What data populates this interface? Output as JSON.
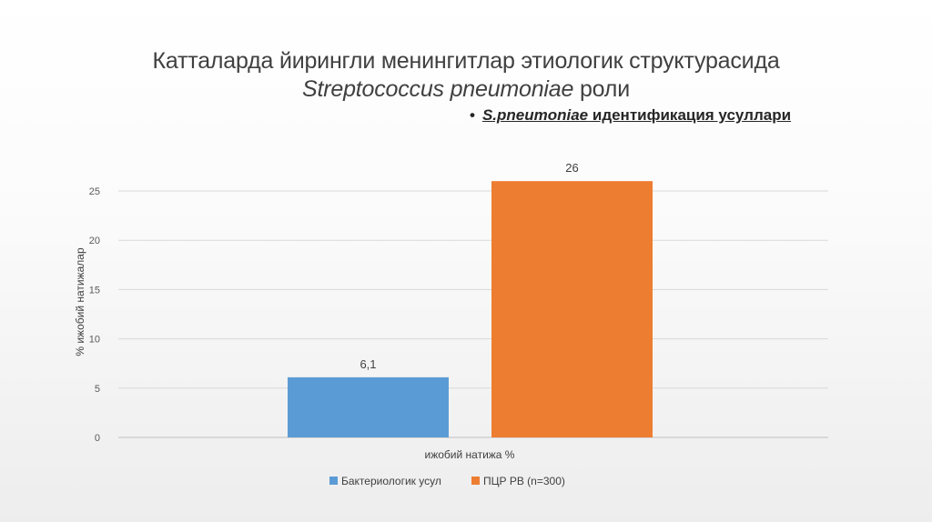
{
  "slide": {
    "title_line1": "Катталарда йирингли менингитлар этиологик структурасида",
    "title_line2_italic": "Streptococcus pneumoniae",
    "title_line2_rest": " роли",
    "bullet_italic": "S.pneumoniae",
    "bullet_rest": " идентификация усуллари"
  },
  "colors": {
    "series1": "#5B9BD5",
    "series2": "#ED7D31",
    "grid": "#D9D9D9",
    "text": "#595959"
  },
  "chart_data": {
    "type": "bar",
    "categories": [
      "ижобий натижа %"
    ],
    "series": [
      {
        "name": "Бактериологик усул",
        "values": [
          6.1
        ],
        "label": "6,1"
      },
      {
        "name": "ПЦР РВ (n=300)",
        "values": [
          26
        ],
        "label": "26"
      }
    ],
    "xlabel": "ижобий натижа %",
    "ylabel": "% ижобий натижалар",
    "ylim": [
      0,
      25
    ],
    "yticks": [
      0,
      5,
      10,
      15,
      20,
      25
    ],
    "grid": true,
    "legend_position": "bottom"
  }
}
